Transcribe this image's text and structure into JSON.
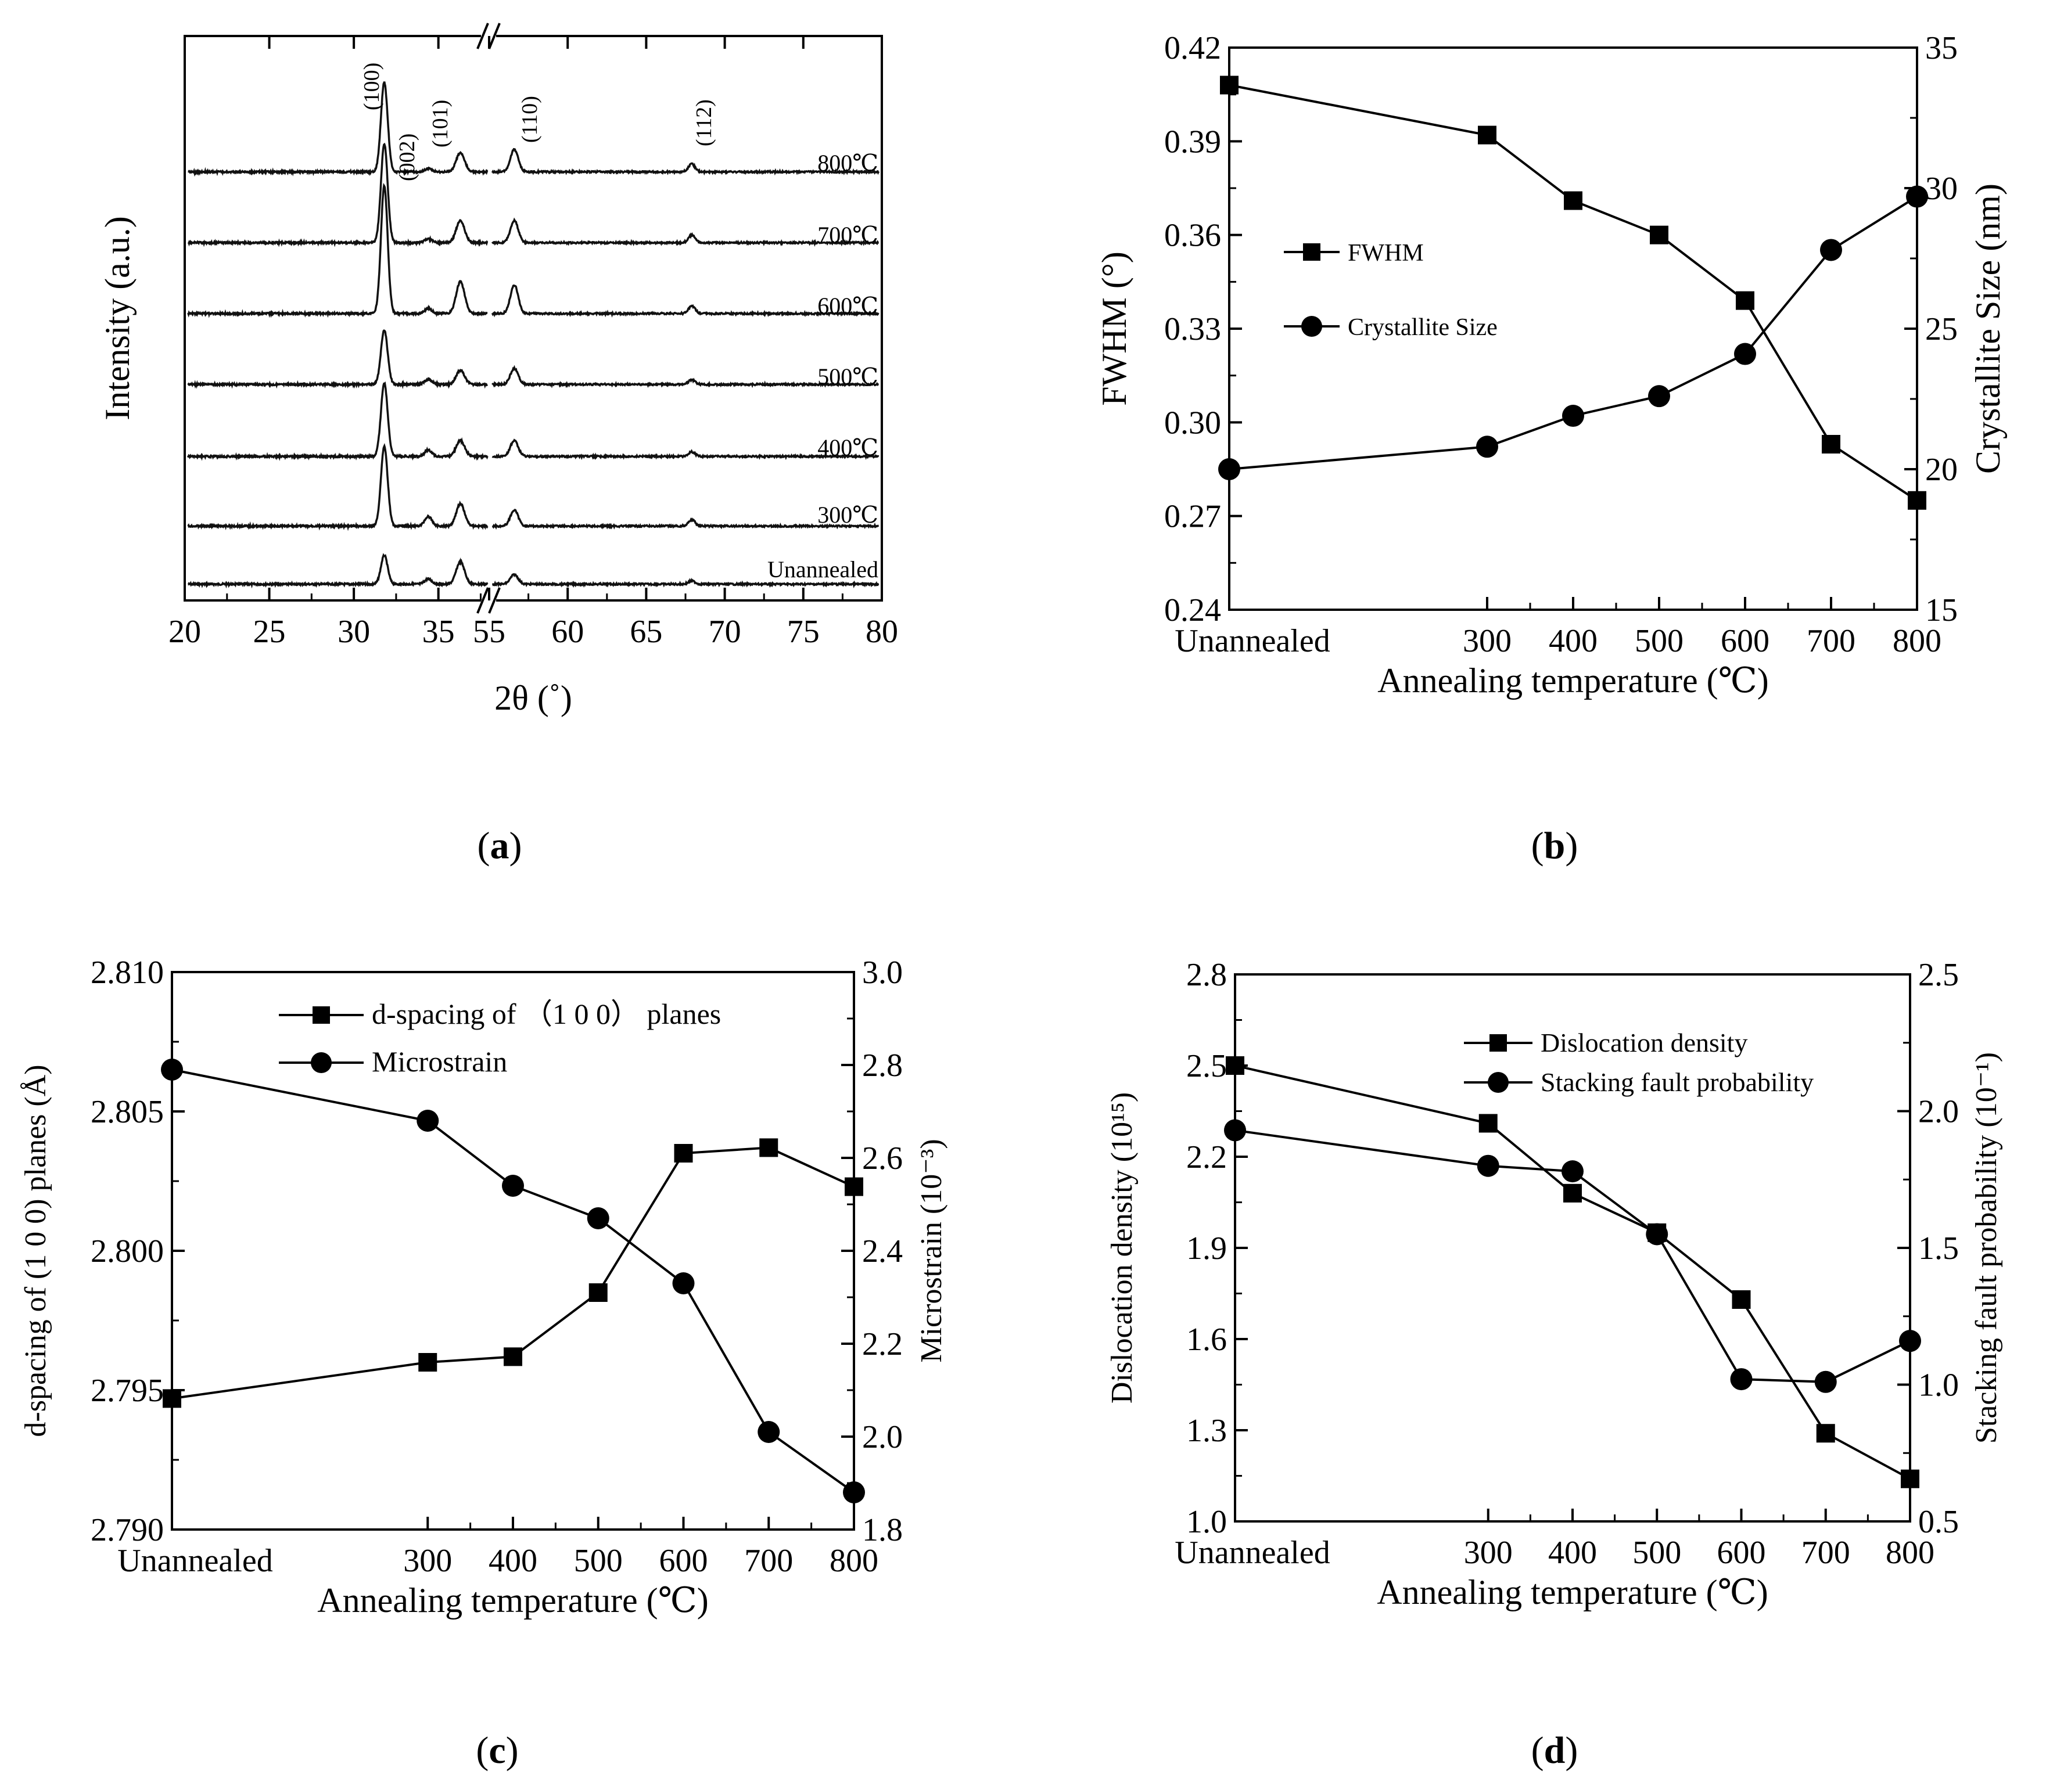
{
  "chart_data": [
    {
      "id": "a",
      "panel_label": "a",
      "type": "line",
      "title": "",
      "xlabel": "2θ (˚)",
      "ylabel": "Intensity (a.u.)",
      "x_break": [
        38,
        55
      ],
      "x_segments": [
        [
          20,
          38
        ],
        [
          55,
          80
        ]
      ],
      "xticks": [
        20,
        25,
        30,
        35,
        55,
        60,
        65,
        70,
        75,
        80
      ],
      "yticks": [],
      "peaks": [
        {
          "label": "(100)",
          "two_theta": 31.8
        },
        {
          "label": "(002)",
          "two_theta": 34.4
        },
        {
          "label": "(101)",
          "two_theta": 36.3
        },
        {
          "label": "(110)",
          "two_theta": 56.6
        },
        {
          "label": "(112)",
          "two_theta": 67.9
        }
      ],
      "series": [
        {
          "name": "Unannealed",
          "relative_peak_heights": [
            0.45,
            0.08,
            0.35,
            0.15,
            0.05
          ]
        },
        {
          "name": "300℃",
          "relative_peak_heights": [
            1.25,
            0.15,
            0.35,
            0.25,
            0.1
          ]
        },
        {
          "name": "400℃",
          "relative_peak_heights": [
            1.15,
            0.1,
            0.25,
            0.25,
            0.07
          ]
        },
        {
          "name": "500℃",
          "relative_peak_heights": [
            0.85,
            0.08,
            0.22,
            0.25,
            0.07
          ]
        },
        {
          "name": "600℃",
          "relative_peak_heights": [
            2.0,
            0.08,
            0.5,
            0.45,
            0.12
          ]
        },
        {
          "name": "700℃",
          "relative_peak_heights": [
            1.55,
            0.06,
            0.35,
            0.35,
            0.12
          ]
        },
        {
          "name": "800℃",
          "relative_peak_heights": [
            1.4,
            0.05,
            0.3,
            0.35,
            0.12
          ]
        }
      ]
    },
    {
      "id": "b",
      "panel_label": "b",
      "type": "line",
      "title": "",
      "xlabel": "Annealing temperature (℃)",
      "ylabel": "FWHM (°)",
      "ylabel_right": "Crystallite Size (nm)",
      "categories": [
        "Unannealed",
        "300",
        "400",
        "500",
        "600",
        "700",
        "800"
      ],
      "x": [
        0,
        300,
        400,
        500,
        600,
        700,
        800
      ],
      "xlim": [
        0,
        800
      ],
      "ylim": [
        0.24,
        0.42
      ],
      "yticks": [
        "0.24",
        "0.27",
        "0.30",
        "0.33",
        "0.36",
        "0.39",
        "0.42"
      ],
      "ylim_right": [
        15,
        35
      ],
      "yticks_right": [
        "15",
        "20",
        "25",
        "30",
        "35"
      ],
      "legend_position": "center-left",
      "series": [
        {
          "name": "FWHM",
          "marker": "square",
          "axis": "left",
          "values": [
            0.408,
            0.392,
            0.371,
            0.36,
            0.339,
            0.293,
            0.275
          ]
        },
        {
          "name": "Crystallite Size",
          "marker": "circle",
          "axis": "right",
          "values": [
            20.0,
            20.8,
            21.9,
            22.6,
            24.1,
            27.8,
            29.7
          ]
        }
      ]
    },
    {
      "id": "c",
      "panel_label": "c",
      "type": "line",
      "title": "",
      "xlabel": "Annealing temperature (℃)",
      "ylabel": "d-spacing of (1 0 0) planes (Å)",
      "ylabel_right": "Microstrain (10⁻³)",
      "categories": [
        "Unannealed",
        "300",
        "400",
        "500",
        "600",
        "700",
        "800"
      ],
      "x": [
        0,
        300,
        400,
        500,
        600,
        700,
        800
      ],
      "xlim": [
        0,
        800
      ],
      "ylim": [
        2.79,
        2.81
      ],
      "yticks": [
        "2.790",
        "2.795",
        "2.800",
        "2.805",
        "2.810"
      ],
      "ylim_right": [
        1.8,
        3.0
      ],
      "yticks_right": [
        "1.8",
        "2.0",
        "2.2",
        "2.4",
        "2.6",
        "2.8",
        "3.0"
      ],
      "legend_position": "top-center",
      "series": [
        {
          "name": "d-spacing of （1 0 0） planes",
          "marker": "square",
          "axis": "left",
          "values": [
            2.7947,
            2.796,
            2.7962,
            2.7985,
            2.8035,
            2.8037,
            2.8023
          ]
        },
        {
          "name": "Microstrain",
          "marker": "circle",
          "axis": "right",
          "values": [
            2.79,
            2.68,
            2.54,
            2.47,
            2.33,
            2.01,
            1.88
          ]
        }
      ]
    },
    {
      "id": "d",
      "panel_label": "d",
      "type": "line",
      "title": "",
      "xlabel": "Annealing temperature (℃)",
      "ylabel": "Dislocation density (10¹⁵)",
      "ylabel_right": "Stacking fault probability (10⁻¹)",
      "categories": [
        "Unannealed",
        "300",
        "400",
        "500",
        "600",
        "700",
        "800"
      ],
      "x": [
        0,
        300,
        400,
        500,
        600,
        700,
        800
      ],
      "xlim": [
        0,
        800
      ],
      "ylim": [
        1.0,
        2.8
      ],
      "yticks": [
        "1.0",
        "1.3",
        "1.6",
        "1.9",
        "2.2",
        "2.5",
        "2.8"
      ],
      "ylim_right": [
        0.5,
        2.5
      ],
      "yticks_right": [
        "0.5",
        "1.0",
        "1.5",
        "2.0",
        "2.5"
      ],
      "legend_position": "top-right",
      "series": [
        {
          "name": "Dislocation density",
          "marker": "square",
          "axis": "left",
          "values": [
            2.5,
            2.31,
            2.08,
            1.95,
            1.73,
            1.29,
            1.14
          ]
        },
        {
          "name": "Stacking fault probability",
          "marker": "circle",
          "axis": "right",
          "values": [
            1.93,
            1.8,
            1.78,
            1.55,
            1.02,
            1.01,
            1.16
          ]
        }
      ]
    }
  ]
}
